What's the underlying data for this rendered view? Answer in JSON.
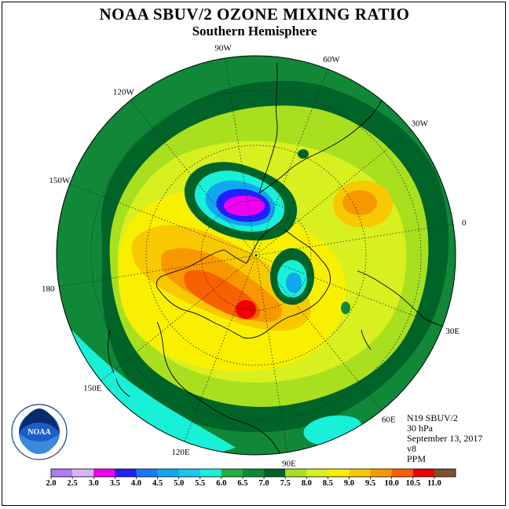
{
  "title": "NOAA SBUV/2 OZONE MIXING RATIO",
  "subtitle": "Southern Hemisphere",
  "longitude_labels": [
    "90W",
    "60W",
    "30W",
    "0",
    "30E",
    "60E",
    "90E",
    "120E",
    "150E",
    "180",
    "150W",
    "120W"
  ],
  "info": {
    "satellite": "N19 SBUV/2",
    "level": "30 hPa",
    "date": "September 13, 2017",
    "version": "v8",
    "units": "PPM"
  },
  "logo_text": "NOAA",
  "colorbar": {
    "ticks": [
      "2.0",
      "2.5",
      "3.0",
      "3.5",
      "4.0",
      "4.5",
      "5.0",
      "5.5",
      "6.0",
      "6.5",
      "7.0",
      "7.5",
      "8.0",
      "8.5",
      "9.0",
      "9.5",
      "10.0",
      "10.5",
      "11.0"
    ],
    "colors": [
      "#b07cf0",
      "#d8b4f8",
      "#f000f0",
      "#2020ff",
      "#1a78ff",
      "#10a8f0",
      "#18c8f0",
      "#18f0d8",
      "#20b040",
      "#108838",
      "#006428",
      "#a8e020",
      "#d8f020",
      "#f8f000",
      "#f8c800",
      "#f89800",
      "#f86000",
      "#f00000",
      "#805030"
    ]
  }
}
